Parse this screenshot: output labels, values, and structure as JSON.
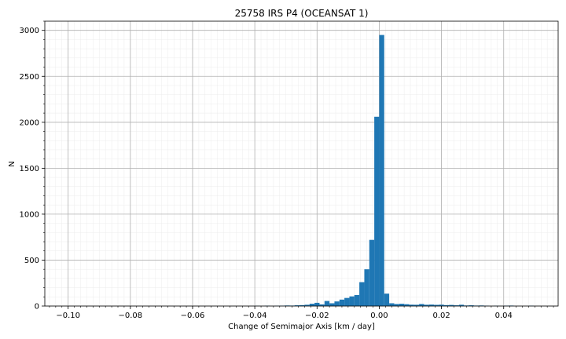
{
  "chart_data": {
    "type": "bar",
    "title": "25758 IRS P4 (OCEANSAT 1)",
    "xlabel": "Change of Semimajor Axis [km / day]",
    "ylabel": "N",
    "xlim": [
      -0.1075,
      0.0575
    ],
    "ylim": [
      0,
      3100
    ],
    "xticks": [
      -0.1,
      -0.08,
      -0.06,
      -0.04,
      -0.02,
      0.0,
      0.02,
      0.04
    ],
    "xtick_labels": [
      "−0.10",
      "−0.08",
      "−0.06",
      "−0.04",
      "−0.02",
      "0.00",
      "0.02",
      "0.04"
    ],
    "yticks": [
      0,
      500,
      1000,
      1500,
      2000,
      2500,
      3000
    ],
    "ytick_labels": [
      "0",
      "500",
      "1000",
      "1500",
      "2000",
      "2500",
      "3000"
    ],
    "grid": true,
    "minor_grid": true,
    "bar_color": "#1f77b4",
    "bin_width": 0.0016,
    "bins": [
      {
        "x": -0.0384,
        "n": 2
      },
      {
        "x": -0.0352,
        "n": 4
      },
      {
        "x": -0.032,
        "n": 3
      },
      {
        "x": -0.0304,
        "n": 4
      },
      {
        "x": -0.0288,
        "n": 6
      },
      {
        "x": -0.0272,
        "n": 5
      },
      {
        "x": -0.0256,
        "n": 8
      },
      {
        "x": -0.024,
        "n": 10
      },
      {
        "x": -0.0224,
        "n": 14
      },
      {
        "x": -0.0208,
        "n": 25
      },
      {
        "x": -0.0192,
        "n": 35
      },
      {
        "x": -0.0176,
        "n": 18
      },
      {
        "x": -0.016,
        "n": 55
      },
      {
        "x": -0.0144,
        "n": 30
      },
      {
        "x": -0.0128,
        "n": 50
      },
      {
        "x": -0.0112,
        "n": 70
      },
      {
        "x": -0.0096,
        "n": 88
      },
      {
        "x": -0.008,
        "n": 105
      },
      {
        "x": -0.0064,
        "n": 120
      },
      {
        "x": -0.0048,
        "n": 260
      },
      {
        "x": -0.0032,
        "n": 400
      },
      {
        "x": -0.0016,
        "n": 720
      },
      {
        "x": 0.0,
        "n": 2060
      },
      {
        "x": 0.0016,
        "n": 2950
      },
      {
        "x": 0.0032,
        "n": 135
      },
      {
        "x": 0.0048,
        "n": 30
      },
      {
        "x": 0.0064,
        "n": 22
      },
      {
        "x": 0.008,
        "n": 25
      },
      {
        "x": 0.0096,
        "n": 20
      },
      {
        "x": 0.0112,
        "n": 15
      },
      {
        "x": 0.0128,
        "n": 14
      },
      {
        "x": 0.0144,
        "n": 22
      },
      {
        "x": 0.016,
        "n": 14
      },
      {
        "x": 0.0176,
        "n": 16
      },
      {
        "x": 0.0192,
        "n": 13
      },
      {
        "x": 0.0208,
        "n": 15
      },
      {
        "x": 0.0224,
        "n": 10
      },
      {
        "x": 0.024,
        "n": 12
      },
      {
        "x": 0.0256,
        "n": 8
      },
      {
        "x": 0.0272,
        "n": 14
      },
      {
        "x": 0.0288,
        "n": 6
      },
      {
        "x": 0.0304,
        "n": 8
      },
      {
        "x": 0.032,
        "n": 5
      },
      {
        "x": 0.0336,
        "n": 6
      },
      {
        "x": 0.0352,
        "n": 4
      },
      {
        "x": 0.0384,
        "n": 3
      },
      {
        "x": 0.0416,
        "n": 4
      },
      {
        "x": 0.0432,
        "n": 5
      },
      {
        "x": 0.0496,
        "n": 4
      }
    ]
  }
}
